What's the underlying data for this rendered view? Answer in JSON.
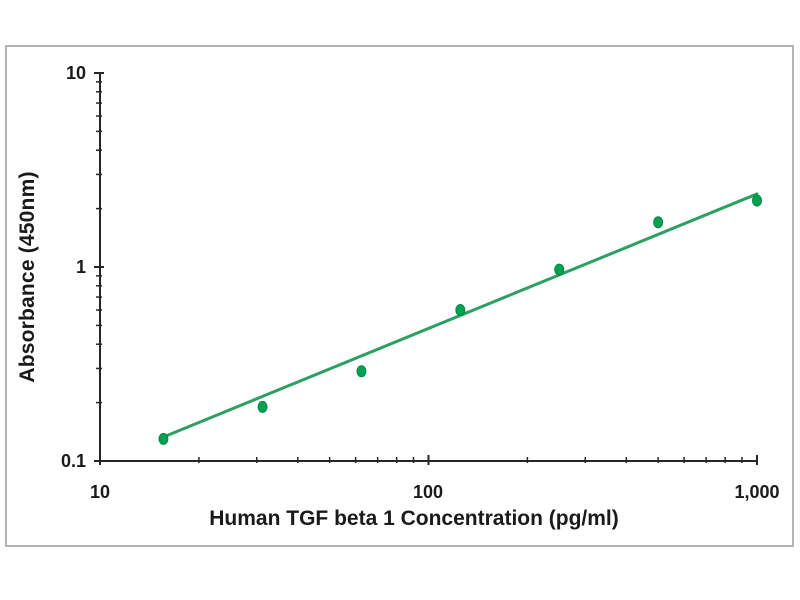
{
  "chart_data": {
    "type": "scatter",
    "title": "",
    "xlabel": "Human TGF beta 1 Concentration (pg/ml)",
    "ylabel": "Absorbance (450nm)",
    "x_scale": "log",
    "y_scale": "log",
    "xlim": [
      10,
      1000
    ],
    "ylim": [
      0.1,
      10
    ],
    "x_ticks": [
      10,
      100,
      1000
    ],
    "y_ticks": [
      10,
      1,
      0.1
    ],
    "x_tick_labels": [
      "10",
      "100",
      "1,000"
    ],
    "y_tick_labels": [
      "10",
      "1",
      "0.1"
    ],
    "x_minor_ticks": [
      20,
      30,
      40,
      50,
      60,
      70,
      80,
      90,
      200,
      300,
      400,
      500,
      600,
      700,
      800,
      900
    ],
    "y_minor_ticks": [
      0.2,
      0.3,
      0.4,
      0.5,
      0.6,
      0.7,
      0.8,
      0.9,
      2,
      3,
      4,
      5,
      6,
      7,
      8,
      9
    ],
    "grid": false,
    "legend": false,
    "series": [
      {
        "name": "standard-points",
        "type": "scatter",
        "x": [
          15.6,
          31.25,
          62.5,
          125,
          250,
          500,
          1000
        ],
        "y": [
          0.13,
          0.19,
          0.29,
          0.6,
          0.97,
          1.7,
          2.2
        ]
      },
      {
        "name": "trend-line",
        "type": "line",
        "x": [
          15.6,
          1000
        ],
        "y": [
          0.133,
          2.38
        ]
      }
    ],
    "colors": {
      "marker": "#00A251",
      "marker_edge": "#008743",
      "line": "#2C9F62",
      "axis": "#262626",
      "text": "#1A1A1A",
      "frame": "#B3B3B3",
      "background": "#FFFFFF"
    }
  }
}
